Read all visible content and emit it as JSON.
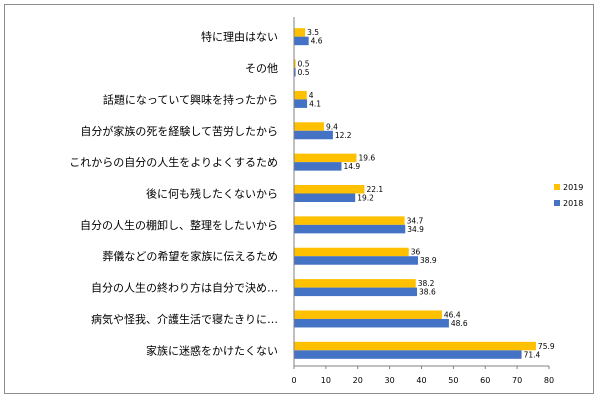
{
  "colors": {
    "2019": "#FFC000",
    "2018": "#4472C4",
    "axis": "#808080",
    "grid": "#d9d9d9"
  },
  "chart_data": {
    "type": "bar",
    "orientation": "horizontal",
    "categories": [
      "特に理由はない",
      "その他",
      "話題になっていて興味を持ったから",
      "自分が家族の死を経験して苦労したから",
      "これからの自分の人生をよりよくするため",
      "後に何も残したくないから",
      "自分の人生の棚卸し、整理をしたいから",
      "葬儀などの希望を家族に伝えるため",
      "自分の人生の終わり方は自分で決め…",
      "病気や怪我、介護生活で寝たきりに…",
      "家族に迷惑をかけたくない"
    ],
    "series": [
      {
        "name": "2019",
        "color": "#FFC000",
        "values": [
          3.5,
          0.5,
          4,
          9.4,
          19.6,
          22.1,
          34.7,
          36,
          38.2,
          46.4,
          75.9
        ]
      },
      {
        "name": "2018",
        "color": "#4472C4",
        "values": [
          4.6,
          0.5,
          4.1,
          12.2,
          14.9,
          19.2,
          34.9,
          38.9,
          38.6,
          48.6,
          71.4
        ]
      }
    ],
    "xlim": [
      0,
      80
    ],
    "xticks": [
      0,
      10,
      20,
      30,
      40,
      50,
      60,
      70,
      80
    ],
    "legend_position": "right",
    "grid": false
  }
}
